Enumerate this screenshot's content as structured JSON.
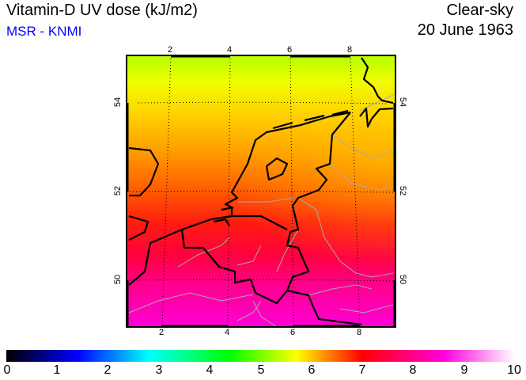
{
  "header": {
    "title": "Vitamin-D UV dose (kJ/m2)",
    "source": "MSR - KNMI",
    "condition": "Clear-sky",
    "date": "20 June 1963"
  },
  "map": {
    "lon_ticks_top": [
      "2",
      "4",
      "6",
      "8"
    ],
    "lon_ticks_bottom": [
      "2",
      "4",
      "6",
      "8"
    ],
    "lat_ticks_left": [
      "54",
      "52",
      "50"
    ],
    "lat_ticks_right": [
      "54",
      "52",
      "50"
    ]
  },
  "colorbar": {
    "labels": [
      "0",
      "1",
      "2",
      "3",
      "4",
      "5",
      "6",
      "7",
      "8",
      "9",
      "10"
    ],
    "min": 0,
    "max": 10,
    "stops": [
      {
        "v": 0,
        "c": "#000000"
      },
      {
        "v": 1.4,
        "c": "#0000ff"
      },
      {
        "v": 2.8,
        "c": "#00ffff"
      },
      {
        "v": 4.4,
        "c": "#00ff00"
      },
      {
        "v": 5.7,
        "c": "#ffff00"
      },
      {
        "v": 7.0,
        "c": "#ff0000"
      },
      {
        "v": 8.6,
        "c": "#ff00e0"
      },
      {
        "v": 10,
        "c": "#ffffff"
      }
    ]
  }
}
